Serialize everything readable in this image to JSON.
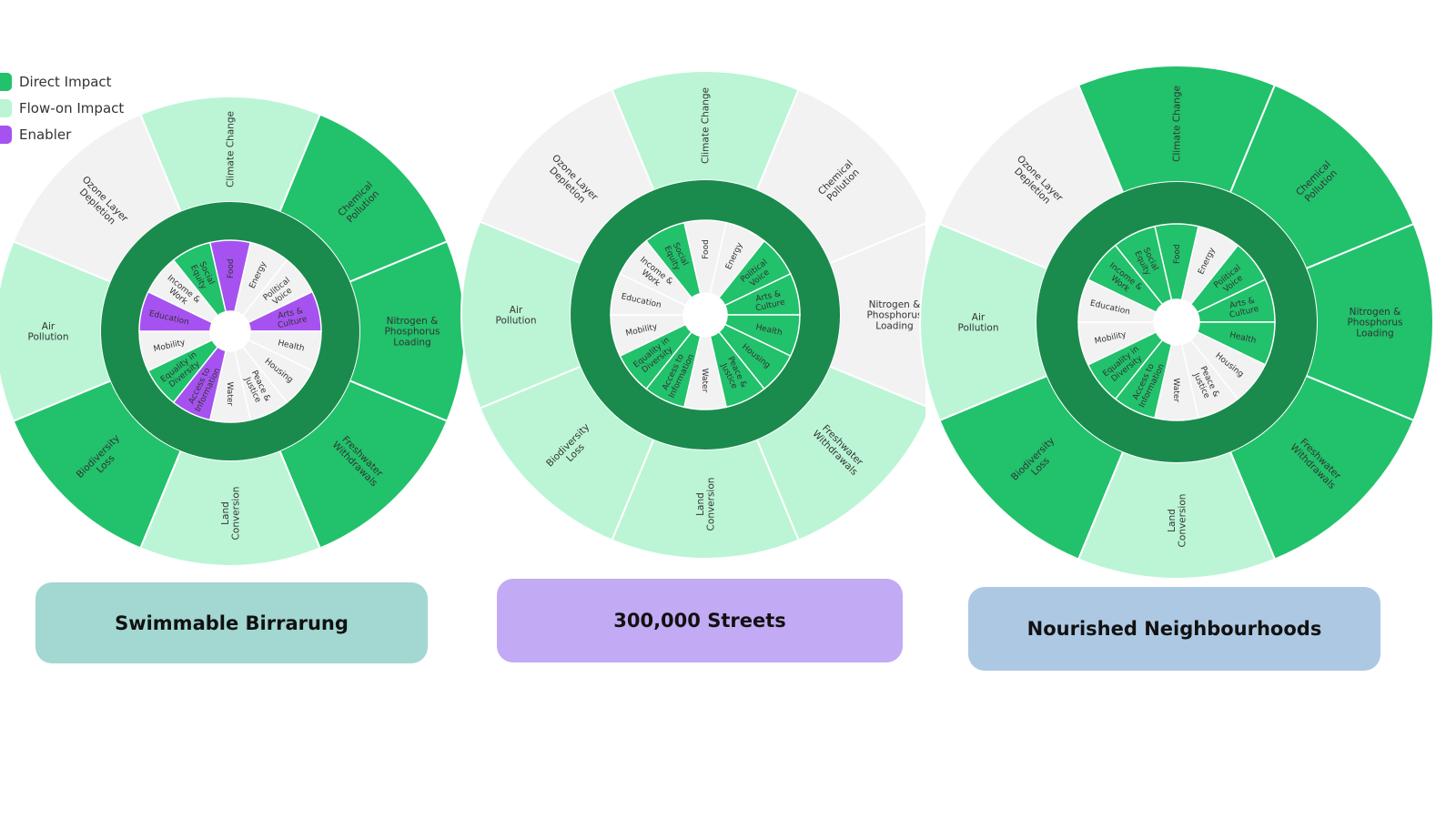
{
  "colors": {
    "direct": "#22c16b",
    "flow_on": "#bbf5d6",
    "enabler": "#a652f0",
    "none": "#f2f2f3",
    "ring": "#1a8b4c",
    "hub": "#ffffff"
  },
  "legend": [
    {
      "label": "Direct Impact",
      "type": "direct"
    },
    {
      "label": "Flow-on Impact",
      "type": "flow_on"
    },
    {
      "label": "Enabler",
      "type": "enabler"
    }
  ],
  "outer_labels": [
    "Climate Change",
    "Chemical Pollution",
    "Nitrogen & Phosphorus Loading",
    "Freshwater Withdrawals",
    "Land Conversion",
    "Biodiversity Loss",
    "Air Pollution",
    "Ozone Layer Depletion"
  ],
  "inner_labels": [
    "Food",
    "Energy",
    "Political Voice",
    "Arts & Culture",
    "Health",
    "Housing",
    "Peace & Justice",
    "Water",
    "Access to Information",
    "Equality in Diversity",
    "Mobility",
    "Education",
    "Income & Work",
    "Social Equity"
  ],
  "wheels": [
    {
      "title": "Swimmable Birrarung",
      "title_bg": "#a2d7d2",
      "outer": [
        "flow_on",
        "direct",
        "direct",
        "direct",
        "flow_on",
        "direct",
        "flow_on",
        "none"
      ],
      "inner": [
        "enabler",
        "none",
        "none",
        "enabler",
        "none",
        "none",
        "none",
        "none",
        "enabler",
        "direct",
        "none",
        "enabler",
        "none",
        "direct"
      ]
    },
    {
      "title": "300,000 Streets",
      "title_bg": "#c2aaf4",
      "outer": [
        "flow_on",
        "none",
        "none",
        "flow_on",
        "flow_on",
        "flow_on",
        "flow_on",
        "none"
      ],
      "inner": [
        "none",
        "none",
        "direct",
        "direct",
        "direct",
        "direct",
        "direct",
        "none",
        "direct",
        "direct",
        "none",
        "none",
        "none",
        "direct"
      ]
    },
    {
      "title": "Nourished Neighbourhoods",
      "title_bg": "#adc8e3",
      "outer": [
        "direct",
        "direct",
        "direct",
        "direct",
        "flow_on",
        "direct",
        "flow_on",
        "none"
      ],
      "inner": [
        "direct",
        "none",
        "direct",
        "direct",
        "direct",
        "none",
        "none",
        "none",
        "direct",
        "direct",
        "none",
        "none",
        "direct",
        "direct"
      ]
    }
  ]
}
